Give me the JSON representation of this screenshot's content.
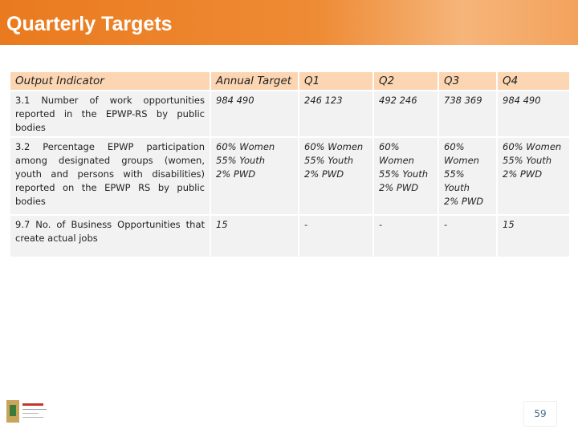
{
  "header": {
    "title": "Quarterly Targets"
  },
  "table": {
    "headers": [
      "Output Indicator",
      "Annual Target",
      "Q1",
      "Q2",
      "Q3",
      "Q4"
    ],
    "rows": [
      [
        [
          "3.1 Number of work opportunities reported in the EPWP-RS by public bodies"
        ],
        [
          "984 490"
        ],
        [
          "246 123"
        ],
        [
          "492 246"
        ],
        [
          "738 369"
        ],
        [
          "984 490"
        ]
      ],
      [
        [
          "3.2 Percentage EPWP participation among designated groups (women, youth and persons with disabilities) reported on the EPWP RS by public bodies"
        ],
        [
          "60% Women",
          "55% Youth",
          "2% PWD"
        ],
        [
          "60% Women",
          "55% Youth",
          "2% PWD"
        ],
        [
          "60%",
          "Women",
          "55% Youth",
          "2% PWD"
        ],
        [
          "60%",
          "Women",
          "55% Youth",
          "2% PWD"
        ],
        [
          "60% Women",
          "55% Youth",
          "2% PWD"
        ]
      ],
      [
        [
          "9.7 No. of Business Opportunities that create actual jobs"
        ],
        [
          "15"
        ],
        [
          "-"
        ],
        [
          "-"
        ],
        [
          "-"
        ],
        [
          "15"
        ]
      ]
    ]
  },
  "footer": {
    "page_number": "59"
  }
}
